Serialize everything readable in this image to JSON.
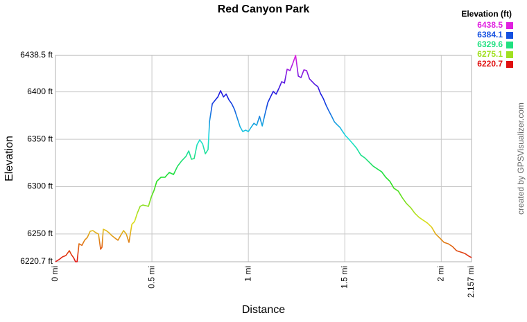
{
  "chart_data": {
    "type": "line",
    "title": "Red Canyon Park",
    "x_label": "Distance",
    "y_label": "Elevation",
    "credit": "created by GPSVisualizer.com",
    "xlim": [
      0,
      2.157
    ],
    "ylim": [
      6220.7,
      6438.5
    ],
    "xticks": [
      {
        "value": 0,
        "label": "0 mi"
      },
      {
        "value": 0.5,
        "label": "0.5 mi"
      },
      {
        "value": 1,
        "label": "1 mi"
      },
      {
        "value": 1.5,
        "label": "1.5 mi"
      },
      {
        "value": 2,
        "label": "2 mi"
      },
      {
        "value": 2.157,
        "label": "2.157 mi"
      }
    ],
    "yticks": [
      {
        "value": 6220.7,
        "label": "6220.7 ft"
      },
      {
        "value": 6250,
        "label": "6250 ft"
      },
      {
        "value": 6300,
        "label": "6300 ft"
      },
      {
        "value": 6350,
        "label": "6350 ft"
      },
      {
        "value": 6400,
        "label": "6400 ft"
      },
      {
        "value": 6438.5,
        "label": "6438.5 ft"
      }
    ],
    "grid": true,
    "legend": {
      "title": "Elevation (ft)",
      "position": "top-right",
      "items": [
        {
          "value": 6438.5,
          "color": "#e020e0"
        },
        {
          "value": 6384.1,
          "color": "#1450e0"
        },
        {
          "value": 6329.6,
          "color": "#20e080"
        },
        {
          "value": 6275.1,
          "color": "#a0e020"
        },
        {
          "value": 6220.7,
          "color": "#e01010"
        }
      ]
    },
    "x": [
      0,
      0.018,
      0.036,
      0.054,
      0.072,
      0.083,
      0.094,
      0.104,
      0.112,
      0.122,
      0.137,
      0.151,
      0.165,
      0.18,
      0.194,
      0.209,
      0.223,
      0.234,
      0.241,
      0.248,
      0.263,
      0.277,
      0.291,
      0.309,
      0.324,
      0.338,
      0.353,
      0.367,
      0.381,
      0.396,
      0.41,
      0.424,
      0.439,
      0.453,
      0.468,
      0.482,
      0.496,
      0.511,
      0.525,
      0.547,
      0.568,
      0.59,
      0.612,
      0.633,
      0.655,
      0.676,
      0.691,
      0.705,
      0.719,
      0.734,
      0.748,
      0.763,
      0.777,
      0.791,
      0.799,
      0.813,
      0.827,
      0.842,
      0.856,
      0.871,
      0.885,
      0.899,
      0.914,
      0.928,
      0.942,
      0.957,
      0.971,
      0.986,
      1.0,
      1.014,
      1.029,
      1.043,
      1.058,
      1.072,
      1.086,
      1.101,
      1.115,
      1.129,
      1.144,
      1.158,
      1.173,
      1.187,
      1.201,
      1.216,
      1.23,
      1.245,
      1.259,
      1.273,
      1.288,
      1.302,
      1.317,
      1.331,
      1.345,
      1.36,
      1.374,
      1.388,
      1.403,
      1.417,
      1.432,
      1.446,
      1.46,
      1.475,
      1.489,
      1.504,
      1.518,
      1.54,
      1.561,
      1.583,
      1.604,
      1.626,
      1.647,
      1.669,
      1.691,
      1.712,
      1.734,
      1.755,
      1.777,
      1.799,
      1.82,
      1.842,
      1.863,
      1.885,
      1.906,
      1.928,
      1.95,
      1.971,
      1.993,
      2.014,
      2.036,
      2.058,
      2.079,
      2.101,
      2.122,
      2.144,
      2.157
    ],
    "values": [
      6220.7,
      6222.9,
      6225.8,
      6227.3,
      6232.4,
      6228,
      6225,
      6220.7,
      6220.7,
      6239.7,
      6238,
      6243.4,
      6246.3,
      6252.9,
      6253.6,
      6251.4,
      6250,
      6233.9,
      6236,
      6255,
      6253.6,
      6251.4,
      6248.5,
      6245.6,
      6243.4,
      6248.5,
      6253.6,
      6250,
      6241.2,
      6260.2,
      6263.1,
      6271.9,
      6279.2,
      6280.6,
      6279.9,
      6279.2,
      6288.7,
      6296,
      6305.5,
      6309.9,
      6309.9,
      6315,
      6312.8,
      6321.6,
      6327.4,
      6331.8,
      6337.7,
      6328.9,
      6329.6,
      6344.2,
      6349.4,
      6345,
      6334.7,
      6339.1,
      6369.1,
      6387.4,
      6391,
      6394.7,
      6401.3,
      6394.7,
      6397.6,
      6391.7,
      6387.4,
      6381.5,
      6372.7,
      6363.2,
      6358.1,
      6359.6,
      6358.1,
      6362.5,
      6366.9,
      6364.7,
      6374.2,
      6364,
      6376.4,
      6388.8,
      6394.7,
      6400.5,
      6397.6,
      6403.5,
      6410.8,
      6409.3,
      6423.9,
      6422.5,
      6429.8,
      6438.5,
      6416.6,
      6415.1,
      6423.2,
      6422.5,
      6413.7,
      6410.8,
      6407.8,
      6405.6,
      6398.3,
      6393.2,
      6385.9,
      6380,
      6374.2,
      6368.4,
      6365.4,
      6362.5,
      6358.1,
      6353.7,
      6350.8,
      6345.7,
      6340.6,
      6333.3,
      6330.3,
      6325.9,
      6321.6,
      6318.6,
      6315.7,
      6309.9,
      6305.5,
      6298.2,
      6295.3,
      6288,
      6282.1,
      6277.7,
      6271.9,
      6267.5,
      6264.6,
      6261.6,
      6257.3,
      6250,
      6245.6,
      6241.2,
      6239.7,
      6236.8,
      6232.4,
      6230.9,
      6229.5,
      6226.5,
      6225.1
    ]
  }
}
